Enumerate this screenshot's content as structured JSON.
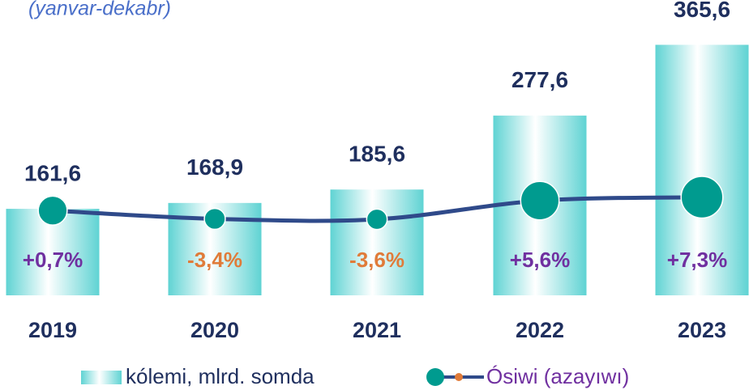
{
  "chart_data": {
    "type": "bar",
    "subtitle": "(yanvar-dekabr)",
    "categories": [
      "2019",
      "2020",
      "2021",
      "2022",
      "2023"
    ],
    "ylim": [
      54,
      366
    ],
    "y2lim": [
      -40,
      40
    ],
    "series": [
      {
        "name": "kólemi, mlrd. somda",
        "color": "#7fe0e0",
        "values": [
          161.6,
          168.9,
          185.6,
          277.6,
          365.6
        ],
        "value_labels": [
          "161,6",
          "168,9",
          "185,6",
          "277,6",
          "365,6"
        ]
      },
      {
        "name": "Ósiwi (azayıwı)",
        "type": "line",
        "axis": "y2",
        "color": "#2f4a8a",
        "marker_color": "#009b8f",
        "values": [
          0.7,
          -3.4,
          -3.6,
          5.6,
          7.3
        ],
        "value_labels": [
          "+0,7%",
          "-3,4%",
          "-3,6%",
          "+5,6%",
          "+7,3%"
        ]
      }
    ]
  }
}
